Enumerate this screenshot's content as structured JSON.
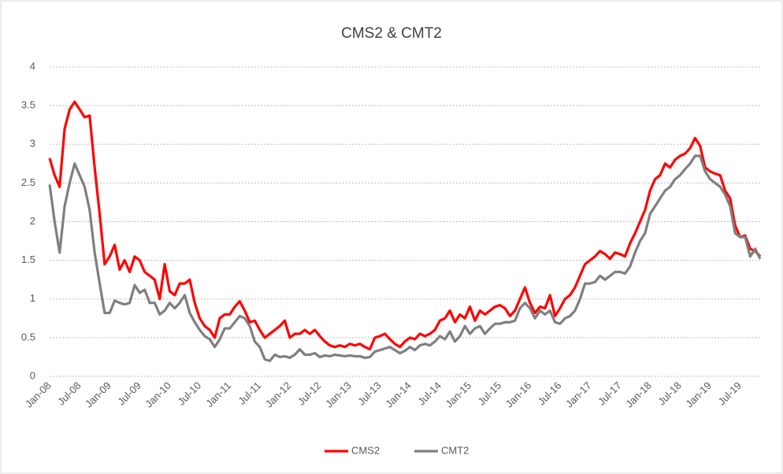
{
  "chart_data": {
    "type": "line",
    "title": "CMS2 & CMT2",
    "categories": [
      "Jan-08",
      null,
      null,
      null,
      null,
      null,
      "Jul-08",
      null,
      null,
      null,
      null,
      null,
      "Jan-09",
      null,
      null,
      null,
      null,
      null,
      "Jul-09",
      null,
      null,
      null,
      null,
      null,
      "Jan-10",
      null,
      null,
      null,
      null,
      null,
      "Jul-10",
      null,
      null,
      null,
      null,
      null,
      "Jan-11",
      null,
      null,
      null,
      null,
      null,
      "Jul-11",
      null,
      null,
      null,
      null,
      null,
      "Jan-12",
      null,
      null,
      null,
      null,
      null,
      "Jul-12",
      null,
      null,
      null,
      null,
      null,
      "Jan-13",
      null,
      null,
      null,
      null,
      null,
      "Jul-13",
      null,
      null,
      null,
      null,
      null,
      "Jan-14",
      null,
      null,
      null,
      null,
      null,
      "Jul-14",
      null,
      null,
      null,
      null,
      null,
      "Jan-15",
      null,
      null,
      null,
      null,
      null,
      "Jul-15",
      null,
      null,
      null,
      null,
      null,
      "Jan-16",
      null,
      null,
      null,
      null,
      null,
      "Jul-16",
      null,
      null,
      null,
      null,
      null,
      "Jan-17",
      null,
      null,
      null,
      null,
      null,
      "Jul-17",
      null,
      null,
      null,
      null,
      null,
      "Jan-18",
      null,
      null,
      null,
      null,
      null,
      "Jul-18",
      null,
      null,
      null,
      null,
      null,
      "Jan-19",
      null,
      null,
      null,
      null,
      null,
      "Jul-19",
      null,
      null,
      null,
      null
    ],
    "series": [
      {
        "name": "CMS2",
        "color": "#ff0000",
        "values": [
          2.82,
          2.6,
          2.45,
          3.2,
          3.45,
          3.55,
          3.45,
          3.35,
          3.37,
          2.7,
          2.1,
          1.45,
          1.55,
          1.7,
          1.38,
          1.5,
          1.35,
          1.55,
          1.5,
          1.35,
          1.3,
          1.25,
          1.0,
          1.45,
          1.1,
          1.05,
          1.2,
          1.2,
          1.25,
          0.95,
          0.75,
          0.65,
          0.6,
          0.5,
          0.75,
          0.8,
          0.8,
          0.9,
          0.97,
          0.85,
          0.7,
          0.72,
          0.6,
          0.5,
          0.55,
          0.6,
          0.65,
          0.72,
          0.5,
          0.55,
          0.55,
          0.6,
          0.55,
          0.6,
          0.52,
          0.45,
          0.4,
          0.38,
          0.4,
          0.38,
          0.42,
          0.4,
          0.42,
          0.38,
          0.35,
          0.5,
          0.52,
          0.55,
          0.48,
          0.42,
          0.38,
          0.45,
          0.5,
          0.48,
          0.55,
          0.52,
          0.55,
          0.6,
          0.72,
          0.75,
          0.85,
          0.7,
          0.8,
          0.75,
          0.9,
          0.72,
          0.85,
          0.8,
          0.85,
          0.9,
          0.92,
          0.88,
          0.78,
          0.85,
          1.0,
          1.15,
          0.95,
          0.82,
          0.9,
          0.88,
          1.05,
          0.78,
          0.88,
          1.0,
          1.05,
          1.15,
          1.3,
          1.45,
          1.5,
          1.55,
          1.62,
          1.58,
          1.52,
          1.6,
          1.58,
          1.55,
          1.72,
          1.85,
          2.0,
          2.15,
          2.4,
          2.55,
          2.6,
          2.75,
          2.7,
          2.8,
          2.85,
          2.88,
          2.95,
          3.08,
          2.98,
          2.7,
          2.65,
          2.62,
          2.6,
          2.4,
          2.3,
          1.95,
          1.8,
          1.82,
          1.65,
          1.62,
          1.55
        ]
      },
      {
        "name": "CMT2",
        "color": "#7f7f7f",
        "values": [
          2.48,
          2.0,
          1.6,
          2.2,
          2.5,
          2.75,
          2.6,
          2.45,
          2.15,
          1.6,
          1.2,
          0.82,
          0.82,
          0.98,
          0.95,
          0.93,
          0.95,
          1.18,
          1.08,
          1.12,
          0.95,
          0.95,
          0.8,
          0.85,
          0.95,
          0.88,
          0.95,
          1.05,
          0.82,
          0.7,
          0.6,
          0.52,
          0.48,
          0.38,
          0.48,
          0.62,
          0.62,
          0.7,
          0.78,
          0.75,
          0.65,
          0.45,
          0.38,
          0.22,
          0.2,
          0.28,
          0.25,
          0.26,
          0.24,
          0.28,
          0.35,
          0.28,
          0.28,
          0.3,
          0.25,
          0.27,
          0.26,
          0.28,
          0.27,
          0.26,
          0.27,
          0.26,
          0.26,
          0.24,
          0.25,
          0.32,
          0.34,
          0.36,
          0.38,
          0.34,
          0.3,
          0.33,
          0.38,
          0.34,
          0.4,
          0.42,
          0.4,
          0.45,
          0.52,
          0.48,
          0.58,
          0.45,
          0.52,
          0.65,
          0.55,
          0.62,
          0.65,
          0.55,
          0.62,
          0.68,
          0.68,
          0.7,
          0.7,
          0.72,
          0.88,
          0.95,
          0.88,
          0.75,
          0.85,
          0.8,
          0.85,
          0.7,
          0.68,
          0.75,
          0.78,
          0.85,
          1.0,
          1.2,
          1.2,
          1.22,
          1.3,
          1.25,
          1.3,
          1.35,
          1.35,
          1.33,
          1.42,
          1.6,
          1.75,
          1.85,
          2.1,
          2.2,
          2.3,
          2.4,
          2.45,
          2.55,
          2.6,
          2.68,
          2.75,
          2.85,
          2.85,
          2.65,
          2.55,
          2.5,
          2.45,
          2.35,
          2.2,
          1.85,
          1.8,
          1.8,
          1.55,
          1.65,
          1.52
        ]
      }
    ],
    "ylim": [
      0,
      4
    ],
    "yticks": [
      0,
      0.5,
      1,
      1.5,
      2,
      2.5,
      3,
      3.5,
      4
    ],
    "grid": true,
    "legend": "bottom"
  }
}
